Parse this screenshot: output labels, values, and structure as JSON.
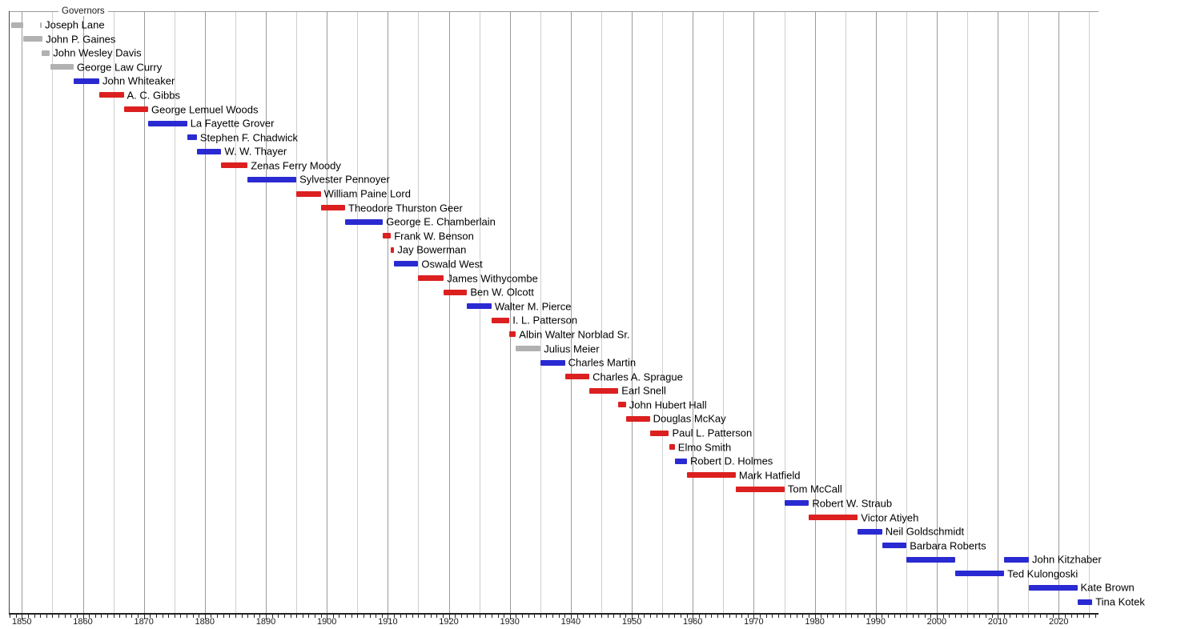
{
  "chart_data": {
    "type": "timeline",
    "title": "Governors",
    "x_axis": {
      "start_year": 1848,
      "end_year": 2026,
      "tick_interval_years": 1,
      "gridline_interval_years": 5,
      "labels": [
        1850,
        1860,
        1870,
        1880,
        1890,
        1900,
        1910,
        1920,
        1930,
        1940,
        1950,
        1960,
        1970,
        1980,
        1990,
        2000,
        2010,
        2020
      ]
    },
    "colors": {
      "gray": "#b1b1b1",
      "blue": "#2a2ad2",
      "red": "#dc2020"
    },
    "governors": [
      {
        "name": "Joseph Lane",
        "color": "gray",
        "terms": [
          [
            1848.3,
            1850.2
          ],
          [
            1853.0,
            1853.25
          ]
        ]
      },
      {
        "name": "John P. Gaines",
        "color": "gray",
        "terms": [
          [
            1850.2,
            1853.4
          ]
        ]
      },
      {
        "name": "John Wesley Davis",
        "color": "gray",
        "terms": [
          [
            1853.2,
            1854.6
          ]
        ]
      },
      {
        "name": "George Law Curry",
        "color": "gray",
        "terms": [
          [
            1854.7,
            1858.5
          ]
        ]
      },
      {
        "name": "John Whiteaker",
        "color": "blue",
        "terms": [
          [
            1858.5,
            1862.7
          ]
        ]
      },
      {
        "name": "A. C. Gibbs",
        "color": "red",
        "terms": [
          [
            1862.7,
            1866.7
          ]
        ]
      },
      {
        "name": "George Lemuel Woods",
        "color": "red",
        "terms": [
          [
            1866.7,
            1870.7
          ]
        ]
      },
      {
        "name": "La Fayette Grover",
        "color": "blue",
        "terms": [
          [
            1870.7,
            1877.1
          ]
        ]
      },
      {
        "name": "Stephen F. Chadwick",
        "color": "blue",
        "terms": [
          [
            1877.1,
            1878.7
          ]
        ]
      },
      {
        "name": "W. W. Thayer",
        "color": "blue",
        "terms": [
          [
            1878.7,
            1882.7
          ]
        ]
      },
      {
        "name": "Zenas Ferry Moody",
        "color": "red",
        "terms": [
          [
            1882.7,
            1887.0
          ]
        ]
      },
      {
        "name": "Sylvester Pennoyer",
        "color": "blue",
        "terms": [
          [
            1887.0,
            1895.0
          ]
        ]
      },
      {
        "name": "William Paine Lord",
        "color": "red",
        "terms": [
          [
            1895.0,
            1899.0
          ]
        ]
      },
      {
        "name": "Theodore Thurston Geer",
        "color": "red",
        "terms": [
          [
            1899.0,
            1903.0
          ]
        ]
      },
      {
        "name": "George E. Chamberlain",
        "color": "blue",
        "terms": [
          [
            1903.0,
            1909.2
          ]
        ]
      },
      {
        "name": "Frank W. Benson",
        "color": "red",
        "terms": [
          [
            1909.2,
            1910.5
          ]
        ]
      },
      {
        "name": "Jay Bowerman",
        "color": "red",
        "terms": [
          [
            1910.5,
            1911.05
          ]
        ]
      },
      {
        "name": "Oswald West",
        "color": "blue",
        "terms": [
          [
            1911.05,
            1915.0
          ]
        ]
      },
      {
        "name": "James Withycombe",
        "color": "red",
        "terms": [
          [
            1915.0,
            1919.2
          ]
        ]
      },
      {
        "name": "Ben W. Olcott",
        "color": "red",
        "terms": [
          [
            1919.2,
            1923.0
          ]
        ]
      },
      {
        "name": "Walter M. Pierce",
        "color": "blue",
        "terms": [
          [
            1923.0,
            1927.0
          ]
        ]
      },
      {
        "name": "I. L. Patterson",
        "color": "red",
        "terms": [
          [
            1927.0,
            1929.93
          ]
        ]
      },
      {
        "name": "Albin Walter Norblad Sr.",
        "color": "red",
        "terms": [
          [
            1929.93,
            1931.0
          ]
        ]
      },
      {
        "name": "Julius Meier",
        "color": "gray",
        "terms": [
          [
            1931.0,
            1935.05
          ]
        ]
      },
      {
        "name": "Charles Martin",
        "color": "blue",
        "terms": [
          [
            1935.05,
            1939.05
          ]
        ]
      },
      {
        "name": "Charles A. Sprague",
        "color": "red",
        "terms": [
          [
            1939.05,
            1943.05
          ]
        ]
      },
      {
        "name": "Earl Snell",
        "color": "red",
        "terms": [
          [
            1943.05,
            1947.8
          ]
        ]
      },
      {
        "name": "John Hubert Hall",
        "color": "red",
        "terms": [
          [
            1947.8,
            1949.05
          ]
        ]
      },
      {
        "name": "Douglas McKay",
        "color": "red",
        "terms": [
          [
            1949.05,
            1952.96
          ]
        ]
      },
      {
        "name": "Paul L. Patterson",
        "color": "red",
        "terms": [
          [
            1952.96,
            1956.1
          ]
        ]
      },
      {
        "name": "Elmo Smith",
        "color": "red",
        "terms": [
          [
            1956.1,
            1957.05
          ]
        ]
      },
      {
        "name": "Robert D. Holmes",
        "color": "blue",
        "terms": [
          [
            1957.05,
            1959.05
          ]
        ]
      },
      {
        "name": "Mark Hatfield",
        "color": "red",
        "terms": [
          [
            1959.05,
            1967.05
          ]
        ]
      },
      {
        "name": "Tom McCall",
        "color": "red",
        "terms": [
          [
            1967.05,
            1975.05
          ]
        ]
      },
      {
        "name": "Robert W. Straub",
        "color": "blue",
        "terms": [
          [
            1975.05,
            1979.05
          ]
        ]
      },
      {
        "name": "Victor Atiyeh",
        "color": "red",
        "terms": [
          [
            1979.05,
            1987.05
          ]
        ]
      },
      {
        "name": "Neil Goldschmidt",
        "color": "blue",
        "terms": [
          [
            1987.05,
            1991.05
          ]
        ]
      },
      {
        "name": "Barbara Roberts",
        "color": "blue",
        "terms": [
          [
            1991.05,
            1995.05
          ]
        ]
      },
      {
        "name": "John Kitzhaber",
        "color": "blue",
        "terms": [
          [
            1995.05,
            2003.05
          ],
          [
            2011.05,
            2015.1
          ]
        ]
      },
      {
        "name": "Ted Kulongoski",
        "color": "blue",
        "terms": [
          [
            2003.05,
            2011.05
          ]
        ]
      },
      {
        "name": "Kate Brown",
        "color": "blue",
        "terms": [
          [
            2015.1,
            2023.05
          ]
        ]
      },
      {
        "name": "Tina Kotek",
        "color": "blue",
        "terms": [
          [
            2023.05,
            2025.5
          ]
        ]
      }
    ]
  }
}
